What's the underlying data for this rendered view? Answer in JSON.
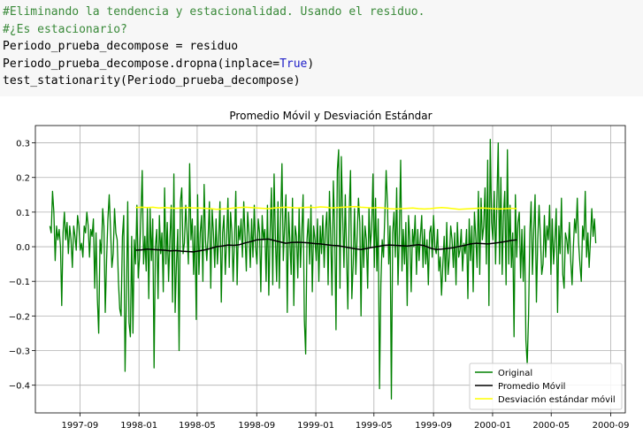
{
  "code_cell": {
    "lines": [
      {
        "parts": [
          {
            "text": "#Eliminando la tendencia y estacionalidad. Usando el residuo.",
            "cls": "cmt"
          }
        ]
      },
      {
        "parts": [
          {
            "text": "#¿Es estacionario?",
            "cls": "cmt"
          }
        ]
      },
      {
        "parts": [
          {
            "text": "Periodo_prueba_decompose = residuo",
            "cls": ""
          }
        ]
      },
      {
        "parts": [
          {
            "text": "Periodo_prueba_decompose.dropna(inplace=",
            "cls": ""
          },
          {
            "text": "True",
            "cls": "kw"
          },
          {
            "text": ")",
            "cls": ""
          }
        ]
      },
      {
        "parts": [
          {
            "text": "test_stationarity(Periodo_prueba_decompose)",
            "cls": ""
          }
        ]
      }
    ]
  },
  "chart_data": {
    "type": "line",
    "title": "Promedio Móvil y Desviación Estándar",
    "xlabel": "",
    "ylabel": "",
    "x_ticks": [
      "1997-09",
      "1998-01",
      "1998-05",
      "1998-09",
      "1999-01",
      "1999-05",
      "1999-09",
      "2000-01",
      "2000-05",
      "2000-09"
    ],
    "y_ticks": [
      "0.3",
      "0.2",
      "0.1",
      "0.0",
      "−0.1",
      "−0.2",
      "−0.3",
      "−0.4"
    ],
    "xlim": [
      "1997-06-01",
      "2000-10-01"
    ],
    "ylim": [
      -0.48,
      0.35
    ],
    "grid": true,
    "legend_position": "lower right",
    "series": [
      {
        "name": "Original",
        "color": "#008000",
        "x_start": "1997-07-01",
        "x_end": "2000-08-01",
        "values": [
          0.06,
          0.04,
          0.16,
          0.1,
          -0.04,
          0.06,
          0.02,
          0.05,
          0.0,
          -0.17,
          0.04,
          0.1,
          0.02,
          0.07,
          -0.02,
          0.06,
          0.02,
          -0.06,
          0.06,
          0.03,
          -0.01,
          0.09,
          0.06,
          -0.01,
          0.01,
          -0.03,
          0.06,
          0.04,
          0.1,
          0.06,
          -0.03,
          0.05,
          0.03,
          0.08,
          -0.12,
          0.04,
          -0.15,
          -0.25,
          0.02,
          -0.02,
          0.11,
          0.06,
          -0.19,
          -0.04,
          0.08,
          0.15,
          0.05,
          -0.06,
          -0.02,
          0.11,
          0.04,
          0.02,
          -0.1,
          -0.18,
          -0.2,
          0.03,
          0.09,
          -0.36,
          -0.15,
          0.13,
          -0.22,
          -0.26,
          0.03,
          -0.25,
          0.02,
          -0.05,
          0.12,
          -0.09,
          -0.03,
          0.09,
          0.22,
          -0.05,
          0.03,
          -0.07,
          0.11,
          -0.15,
          0.11,
          -0.04,
          0.08,
          -0.35,
          0.0,
          0.05,
          -0.15,
          0.09,
          -0.02,
          0.04,
          -0.13,
          0.17,
          -0.05,
          0.07,
          -0.1,
          0.02,
          0.12,
          -0.16,
          0.21,
          -0.19,
          -0.05,
          0.05,
          -0.3,
          0.13,
          0.17,
          -0.02,
          0.01,
          0.12,
          0.04,
          -0.05,
          0.24,
          0.02,
          0.08,
          -0.08,
          0.06,
          -0.21,
          0.15,
          -0.08,
          0.04,
          0.09,
          -0.1,
          0.18,
          0.02,
          -0.04,
          0.03,
          0.13,
          -0.12,
          0.11,
          0.04,
          -0.06,
          0.08,
          -0.05,
          0.02,
          0.13,
          -0.16,
          0.04,
          0.09,
          -0.08,
          0.02,
          0.14,
          -0.06,
          0.1,
          0.04,
          -0.1,
          0.02,
          0.16,
          -0.11,
          0.06,
          0.02,
          0.08,
          -0.03,
          0.13,
          0.03,
          -0.07,
          0.1,
          0.04,
          -0.06,
          0.08,
          -0.03,
          0.12,
          0.0,
          -0.05,
          0.08,
          0.04,
          -0.13,
          0.09,
          0.02,
          0.05,
          -0.1,
          0.12,
          -0.14,
          0.04,
          0.17,
          -0.11,
          0.21,
          0.03,
          -0.1,
          0.13,
          -0.12,
          0.08,
          0.24,
          -0.04,
          0.06,
          0.15,
          -0.19,
          0.1,
          0.02,
          -0.08,
          0.14,
          -0.17,
          0.06,
          0.03,
          -0.09,
          0.11,
          -0.06,
          0.04,
          0.15,
          -0.21,
          -0.31,
          0.02,
          0.08,
          -0.05,
          0.12,
          -0.13,
          0.06,
          0.02,
          -0.04,
          0.08,
          -0.1,
          0.06,
          -0.02,
          0.09,
          -0.06,
          0.05,
          0.1,
          -0.11,
          0.16,
          0.02,
          -0.14,
          0.19,
          0.05,
          -0.24,
          0.22,
          0.28,
          -0.12,
          0.26,
          0.09,
          -0.06,
          0.15,
          -0.02,
          -0.18,
          0.1,
          0.22,
          -0.15,
          -0.05,
          0.11,
          -0.08,
          0.03,
          0.14,
          0.07,
          -0.2,
          0.09,
          -0.06,
          0.06,
          0.02,
          -0.12,
          0.11,
          0.0,
          0.05,
          0.21,
          -0.06,
          0.14,
          -0.07,
          0.08,
          -0.41,
          -0.11,
          0.02,
          -0.03,
          0.09,
          0.22,
          0.12,
          -0.05,
          0.06,
          -0.44,
          0.04,
          0.1,
          -0.03,
          0.17,
          -0.11,
          0.04,
          0.25,
          -0.07,
          0.05,
          -0.05,
          0.07,
          -0.17,
          0.09,
          0.02,
          -0.13,
          0.05,
          0.0,
          0.09,
          -0.08,
          0.05,
          -0.04,
          0.03,
          0.09,
          -0.06,
          0.05,
          -0.05,
          0.02,
          -0.11,
          0.04,
          0.06,
          -0.03,
          0.09,
          0.0,
          -0.02,
          0.05,
          -0.07,
          -0.03,
          -0.14,
          -0.05,
          0.03,
          -0.1,
          0.07,
          -0.08,
          -0.03,
          0.06,
          0.02,
          -0.06,
          0.04,
          -0.11,
          0.07,
          -0.03,
          -0.01,
          0.05,
          -0.07,
          0.01,
          -0.02,
          0.05,
          -0.15,
          0.08,
          -0.04,
          0.06,
          -0.13,
          0.1,
          0.03,
          -0.06,
          0.16,
          -0.08,
          0.14,
          0.02,
          0.06,
          0.17,
          -0.05,
          0.25,
          -0.17,
          0.31,
          0.07,
          0.02,
          0.16,
          -0.05,
          0.13,
          0.3,
          -0.05,
          0.2,
          -0.08,
          0.09,
          0.16,
          -0.11,
          0.28,
          -0.05,
          0.12,
          -0.06,
          0.04,
          -0.26,
          0.15,
          -0.03,
          0.07,
          0.1,
          -0.09,
          0.05,
          -0.1,
          0.06,
          -0.27,
          -0.34,
          -0.2,
          0.04,
          0.13,
          -0.08,
          0.05,
          0.15,
          -0.16,
          0.02,
          0.12,
          0.03,
          -0.08,
          -0.05,
          0.09,
          -0.03,
          0.06,
          0.02,
          0.12,
          -0.08,
          0.08,
          -0.05,
          0.02,
          0.11,
          -0.19,
          0.06,
          -0.02,
          0.14,
          -0.08,
          -0.12,
          0.04,
          0.02,
          -0.02,
          0.07,
          -0.04,
          -0.11,
          0.0,
          0.08,
          0.04,
          0.14,
          0.01,
          -0.05,
          -0.1,
          0.06,
          0.02,
          0.16,
          -0.03,
          0.04,
          -0.06,
          0.02,
          0.11,
          0.03,
          0.08,
          0.01
        ]
      },
      {
        "name": "Promedio Móvil",
        "color": "#000000",
        "x_start": "1997-12-25",
        "x_end": "2000-02-20",
        "values": [
          -0.01,
          -0.009,
          -0.007,
          -0.008,
          -0.009,
          -0.01,
          -0.012,
          -0.011,
          -0.013,
          -0.014,
          -0.015,
          -0.012,
          -0.009,
          -0.005,
          0.0,
          0.002,
          0.005,
          0.004,
          0.006,
          0.011,
          0.015,
          0.02,
          0.021,
          0.022,
          0.018,
          0.014,
          0.01,
          0.012,
          0.013,
          0.012,
          0.011,
          0.009,
          0.008,
          0.006,
          0.004,
          0.003,
          0.0,
          -0.003,
          -0.006,
          -0.008,
          -0.005,
          -0.002,
          0.001,
          0.004,
          0.005,
          0.004,
          0.003,
          0.002,
          0.004,
          0.006,
          0.003,
          -0.004,
          -0.008,
          -0.007,
          -0.005,
          -0.003,
          0.001,
          0.004,
          0.008,
          0.01,
          0.009,
          0.008,
          0.01,
          0.012,
          0.015,
          0.018,
          0.02
        ]
      },
      {
        "name": "Desviación estándar móvil",
        "color": "#ffff00",
        "x_start": "1997-12-25",
        "x_end": "2000-02-20",
        "values": [
          0.113,
          0.114,
          0.113,
          0.114,
          0.112,
          0.113,
          0.112,
          0.111,
          0.112,
          0.113,
          0.112,
          0.112,
          0.111,
          0.11,
          0.108,
          0.109,
          0.11,
          0.112,
          0.113,
          0.114,
          0.113,
          0.112,
          0.111,
          0.11,
          0.112,
          0.113,
          0.114,
          0.113,
          0.112,
          0.113,
          0.114,
          0.113,
          0.115,
          0.114,
          0.112,
          0.113,
          0.114,
          0.115,
          0.116,
          0.114,
          0.113,
          0.112,
          0.113,
          0.112,
          0.11,
          0.109,
          0.11,
          0.111,
          0.112,
          0.11,
          0.109,
          0.11,
          0.112,
          0.113,
          0.112,
          0.11,
          0.108,
          0.109,
          0.11,
          0.111,
          0.112,
          0.111,
          0.11,
          0.109,
          0.11,
          0.111,
          0.11
        ]
      }
    ]
  }
}
